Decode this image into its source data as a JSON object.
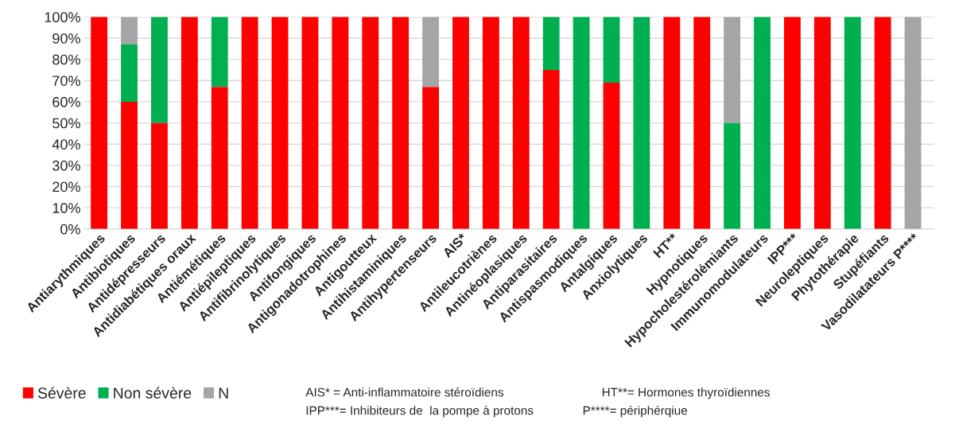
{
  "chart_data": {
    "type": "bar",
    "stacked": true,
    "categories": [
      "Antiarythmiques",
      "Antibiotiques",
      "Antidépresseurs",
      "Antidiabétiques oraux",
      "Antiémétiques",
      "Antiépileptiques",
      "Antifibrinolytiques",
      "Antifongiques",
      "Antigonadotrophines",
      "Antigoutteux",
      "Antihistaminiques",
      "Antihypertenseurs",
      "AIS*",
      "Antileucotriènes",
      "Antinéoplasiques",
      "Antiparasitaires",
      "Antispasmodiques",
      "Antalgiques",
      "Anxiolytiques",
      "HT**",
      "Hypnotiques",
      "Hypocholestérolémiants",
      "Immunomodulateurs",
      "IPP***",
      "Neuroleptiques",
      "Phytothérapie",
      "Stupéfiants",
      "Vasodilatateurs P****"
    ],
    "series": [
      {
        "name": "Sévère",
        "color": "#ff0000",
        "values": [
          100,
          60,
          50,
          100,
          67,
          100,
          100,
          100,
          100,
          100,
          100,
          67,
          100,
          100,
          100,
          75,
          0,
          69,
          0,
          100,
          100,
          0,
          0,
          100,
          100,
          0,
          100,
          0
        ]
      },
      {
        "name": "Non sévère",
        "color": "#00b050",
        "values": [
          0,
          27,
          50,
          0,
          33,
          0,
          0,
          0,
          0,
          0,
          0,
          0,
          0,
          0,
          0,
          25,
          100,
          31,
          100,
          0,
          0,
          50,
          100,
          0,
          0,
          100,
          0,
          0
        ]
      },
      {
        "name": "N",
        "color": "#a5a5a5",
        "values": [
          0,
          13,
          0,
          0,
          0,
          0,
          0,
          0,
          0,
          0,
          0,
          33,
          0,
          0,
          0,
          0,
          0,
          0,
          0,
          0,
          0,
          50,
          0,
          0,
          0,
          0,
          0,
          100
        ]
      }
    ],
    "ylim": [
      0,
      100
    ],
    "yticks": [
      {
        "value": 0,
        "label": "0%"
      },
      {
        "value": 10,
        "label": "10%"
      },
      {
        "value": 20,
        "label": "20%"
      },
      {
        "value": 30,
        "label": "30%"
      },
      {
        "value": 40,
        "label": "40%"
      },
      {
        "value": 50,
        "label": "50%"
      },
      {
        "value": 60,
        "label": "60%"
      },
      {
        "value": 70,
        "label": "70%"
      },
      {
        "value": 80,
        "label": "80%"
      },
      {
        "value": 90,
        "label": "90%"
      },
      {
        "value": 100,
        "label": "100%"
      }
    ],
    "grid": "y",
    "legend": "bottom left",
    "annotations": [
      "AIS* = Anti-inflammatoire stéroïdiens",
      "HT**= Hormones thyroïdiennes",
      "IPP***= Inhibiteurs de  la pompe à protons",
      "P****= périphérqiue"
    ]
  }
}
